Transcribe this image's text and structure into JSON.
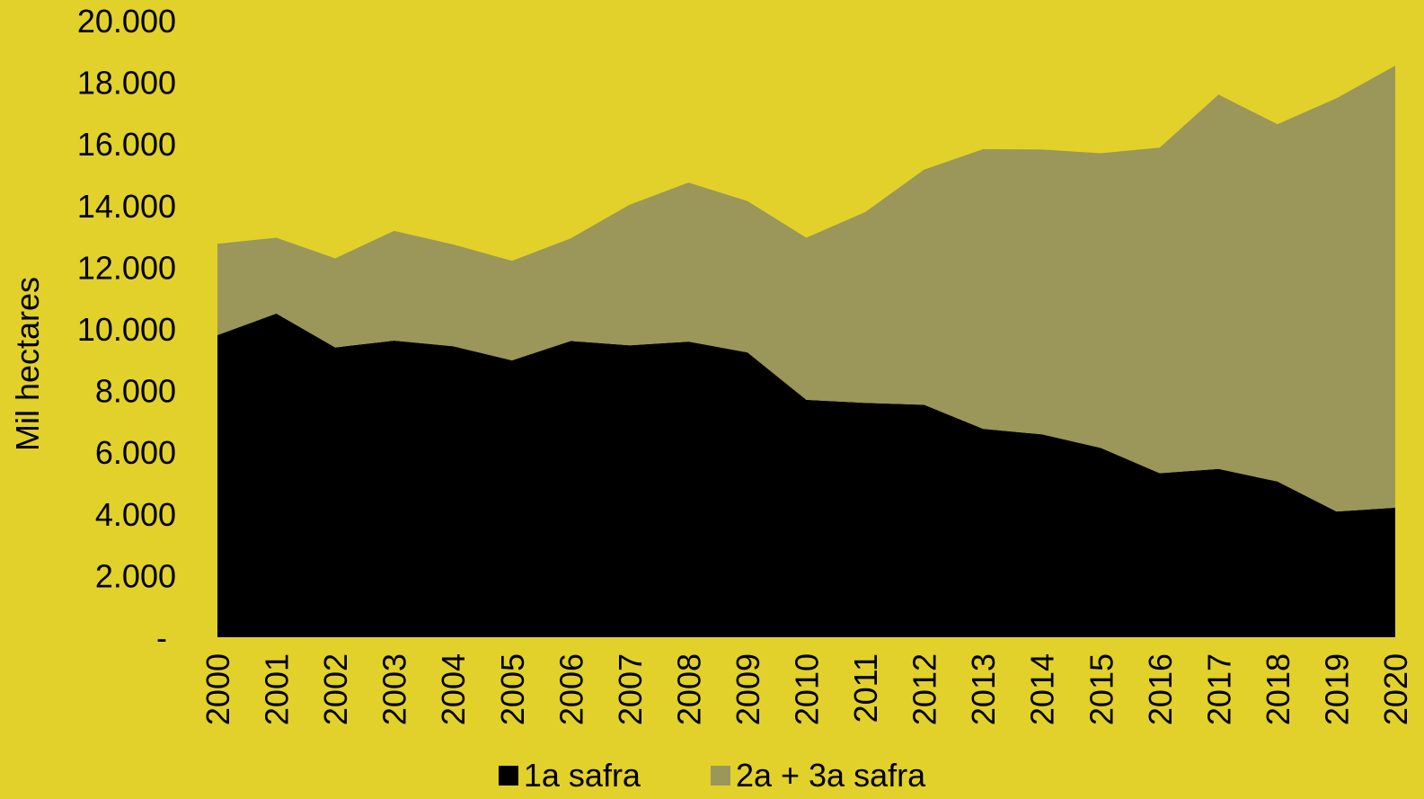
{
  "colors": {
    "background": "#e2d12a",
    "series_1": "#000000",
    "series_2": "#9b965a"
  },
  "chart_data": {
    "type": "area",
    "stacked": true,
    "title": "",
    "xlabel": "",
    "ylabel": "Mil hectares",
    "ylim": [
      0,
      20000
    ],
    "yticks": [
      "-",
      "2.000",
      "4.000",
      "6.000",
      "8.000",
      "10.000",
      "12.000",
      "14.000",
      "16.000",
      "18.000",
      "20.000"
    ],
    "grid": false,
    "legend_position": "bottom",
    "categories": [
      "2000",
      "2001",
      "2002",
      "2003",
      "2004",
      "2005",
      "2006",
      "2007",
      "2008",
      "2009",
      "2010",
      "2011",
      "2012",
      "2013",
      "2014",
      "2015",
      "2016",
      "2017",
      "2018",
      "2019",
      "2020"
    ],
    "series": [
      {
        "name": "1a safra",
        "color": "#000000",
        "values": [
          9800,
          10500,
          9400,
          9620,
          9440,
          8980,
          9610,
          9470,
          9590,
          9240,
          7700,
          7600,
          7540,
          6760,
          6580,
          6140,
          5320,
          5460,
          5050,
          4080,
          4200
        ]
      },
      {
        "name": "2a + 3a safra",
        "color": "#9b965a",
        "values": [
          2960,
          2460,
          2890,
          3560,
          3300,
          3230,
          3330,
          4560,
          5160,
          4910,
          5260,
          6190,
          7630,
          9070,
          9240,
          9560,
          10560,
          12140,
          11590,
          13400,
          14340
        ]
      }
    ]
  }
}
